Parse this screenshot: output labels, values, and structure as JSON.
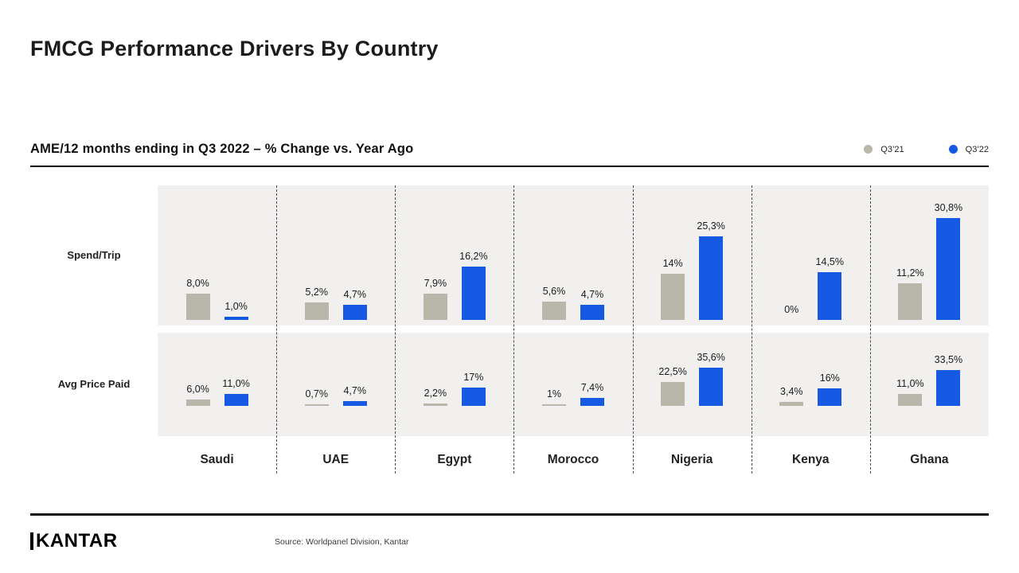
{
  "header": {
    "title": "FMCG Performance Drivers By Country"
  },
  "chart_data": {
    "type": "bar",
    "title": "FMCG Performance Drivers By Country",
    "subtitle": "AME/12 months ending in Q3 2022 – % Change vs. Year Ago",
    "unit": "%",
    "legend_position": "top-right",
    "grid": false,
    "legend": [
      {
        "name": "Q3’21",
        "color": "#b9b6aa"
      },
      {
        "name": "Q3’22",
        "color": "#1659e2"
      }
    ],
    "categories": [
      "Saudi",
      "UAE",
      "Egypt",
      "Morocco",
      "Nigeria",
      "Kenya",
      "Ghana"
    ],
    "rows": [
      {
        "label": "Spend/Trip",
        "series": [
          {
            "name": "Q3’21",
            "values": [
              8.0,
              5.2,
              7.9,
              5.6,
              14,
              0,
              11.2
            ],
            "labels": [
              "8,0%",
              "5,2%",
              "7,9%",
              "5,6%",
              "14%",
              "0%",
              "11,2%"
            ]
          },
          {
            "name": "Q3’22",
            "values": [
              1.0,
              4.7,
              16.2,
              4.7,
              25.3,
              14.5,
              30.8
            ],
            "labels": [
              "1,0%",
              "4,7%",
              "16,2%",
              "4,7%",
              "25,3%",
              "14,5%",
              "30,8%"
            ]
          }
        ]
      },
      {
        "label": "Avg Price Paid",
        "series": [
          {
            "name": "Q3’21",
            "values": [
              6.0,
              0.7,
              2.2,
              1,
              22.5,
              3.4,
              11.0
            ],
            "labels": [
              "6,0%",
              "0,7%",
              "2,2%",
              "1%",
              "22,5%",
              "3,4%",
              "11,0%"
            ]
          },
          {
            "name": "Q3’22",
            "values": [
              11.0,
              4.7,
              17,
              7.4,
              35.6,
              16,
              33.5
            ],
            "labels": [
              "11,0%",
              "4,7%",
              "17%",
              "7,4%",
              "35,6%",
              "16%",
              "33,5%"
            ]
          }
        ]
      }
    ]
  },
  "footer": {
    "logo": "KANTAR",
    "source": "Source: Worldpanel Division, Kantar"
  }
}
